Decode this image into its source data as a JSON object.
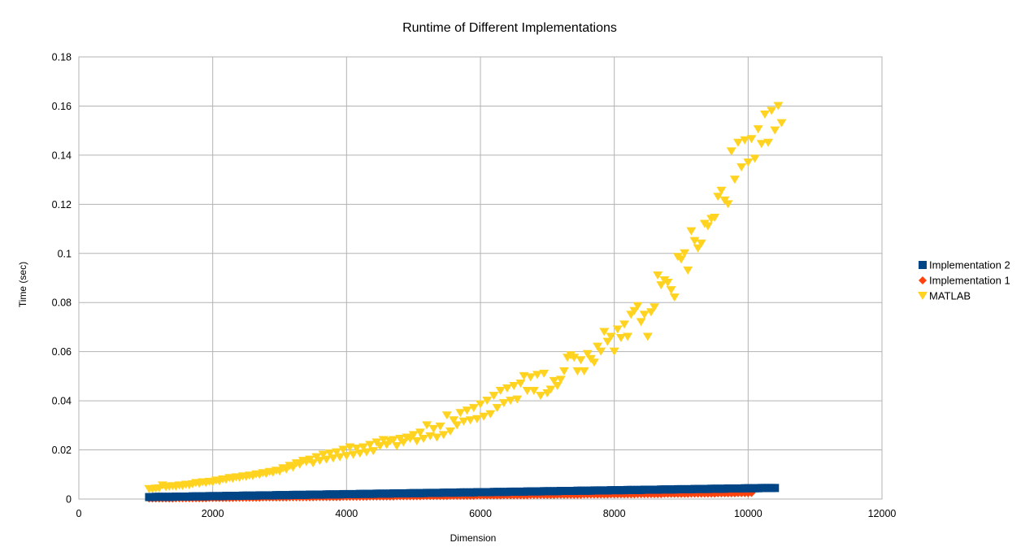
{
  "chart_data": {
    "type": "scatter",
    "title": "Runtime of Different Implementations",
    "xlabel": "Dimension",
    "ylabel": "Time (sec)",
    "xlim": [
      0,
      12000
    ],
    "ylim": [
      0,
      0.18
    ],
    "x_ticks": [
      0,
      2000,
      4000,
      6000,
      8000,
      10000,
      12000
    ],
    "y_ticks": [
      0,
      0.02,
      0.04,
      0.06,
      0.08,
      0.1,
      0.12,
      0.14,
      0.16,
      0.18
    ],
    "grid": true,
    "legend_position": "right",
    "x_start": 1050,
    "x_step": 50,
    "series": [
      {
        "name": "Implementation 2",
        "marker": "square",
        "color": "#004586",
        "values": [
          0.0008,
          0.0008,
          0.0009,
          0.0009,
          0.0009,
          0.0009,
          0.0009,
          0.0009,
          0.001,
          0.001,
          0.001,
          0.001,
          0.001,
          0.0011,
          0.0011,
          0.0011,
          0.0011,
          0.0011,
          0.0012,
          0.0012,
          0.0012,
          0.0012,
          0.0012,
          0.0013,
          0.0013,
          0.0013,
          0.0013,
          0.0013,
          0.0014,
          0.0014,
          0.0014,
          0.0014,
          0.0014,
          0.0015,
          0.0015,
          0.0015,
          0.0015,
          0.0015,
          0.0016,
          0.0016,
          0.0016,
          0.0016,
          0.0016,
          0.0017,
          0.0017,
          0.0017,
          0.0017,
          0.0017,
          0.0018,
          0.0018,
          0.0018,
          0.0018,
          0.0018,
          0.0019,
          0.0019,
          0.0019,
          0.0019,
          0.0019,
          0.002,
          0.002,
          0.002,
          0.002,
          0.002,
          0.0021,
          0.0021,
          0.0021,
          0.0021,
          0.0021,
          0.0022,
          0.0022,
          0.0022,
          0.0022,
          0.0022,
          0.0023,
          0.0023,
          0.0023,
          0.0023,
          0.0023,
          0.0024,
          0.0024,
          0.0024,
          0.0024,
          0.0024,
          0.0025,
          0.0025,
          0.0025,
          0.0025,
          0.0025,
          0.0026,
          0.0026,
          0.0026,
          0.0026,
          0.0026,
          0.0027,
          0.0027,
          0.0027,
          0.0027,
          0.0027,
          0.0028,
          0.0028,
          0.0028,
          0.0028,
          0.0028,
          0.0029,
          0.0029,
          0.0029,
          0.0029,
          0.0029,
          0.003,
          0.003,
          0.003,
          0.003,
          0.003,
          0.0031,
          0.0031,
          0.0031,
          0.0031,
          0.0031,
          0.0032,
          0.0032,
          0.0032,
          0.0032,
          0.0032,
          0.0033,
          0.0033,
          0.0033,
          0.0033,
          0.0033,
          0.0034,
          0.0034,
          0.0034,
          0.0034,
          0.0034,
          0.0035,
          0.0035,
          0.0035,
          0.0035,
          0.0035,
          0.0036,
          0.0036,
          0.0036,
          0.0036,
          0.0036,
          0.0037,
          0.0037,
          0.0037,
          0.0037,
          0.0037,
          0.0038,
          0.0038,
          0.0038,
          0.0038,
          0.0038,
          0.0039,
          0.0039,
          0.0039,
          0.0039,
          0.0039,
          0.004,
          0.004,
          0.004,
          0.004,
          0.004,
          0.0041,
          0.0041,
          0.0041,
          0.0041,
          0.0041,
          0.0042,
          0.0042,
          0.0042,
          0.0042,
          0.0042,
          0.0043,
          0.0043,
          0.0043,
          0.0043,
          0.0043,
          0.0044,
          0.0044,
          0.0044,
          0.0044,
          0.0044,
          0.0045,
          0.0045,
          0.0045,
          0.0045,
          0.0045
        ]
      },
      {
        "name": "Implementation 1",
        "marker": "diamond",
        "color": "#ff420e",
        "values": [
          0.0002,
          0.0002,
          0.0002,
          0.0002,
          0.0002,
          0.0002,
          0.0002,
          0.0002,
          0.0003,
          0.0003,
          0.0003,
          0.0003,
          0.0003,
          0.0003,
          0.0003,
          0.0003,
          0.0003,
          0.0003,
          0.0004,
          0.0004,
          0.0004,
          0.0004,
          0.0004,
          0.0004,
          0.0004,
          0.0004,
          0.0005,
          0.0005,
          0.0005,
          0.0005,
          0.0005,
          0.0005,
          0.0005,
          0.0005,
          0.0006,
          0.0006,
          0.0006,
          0.0006,
          0.0006,
          0.0006,
          0.0006,
          0.0006,
          0.0007,
          0.0007,
          0.0007,
          0.0007,
          0.0007,
          0.0007,
          0.0007,
          0.0007,
          0.0008,
          0.0008,
          0.0008,
          0.0008,
          0.0008,
          0.0008,
          0.0008,
          0.0008,
          0.0009,
          0.0009,
          0.0009,
          0.0009,
          0.0009,
          0.0009,
          0.0009,
          0.0009,
          0.001,
          0.001,
          0.001,
          0.001,
          0.001,
          0.001,
          0.001,
          0.001,
          0.0011,
          0.0011,
          0.0011,
          0.0011,
          0.0011,
          0.0011,
          0.0011,
          0.0011,
          0.0012,
          0.0012,
          0.0012,
          0.0012,
          0.0012,
          0.0012,
          0.0012,
          0.0012,
          0.0013,
          0.0013,
          0.0013,
          0.0013,
          0.0013,
          0.0013,
          0.0013,
          0.0013,
          0.0014,
          0.0014,
          0.0014,
          0.0014,
          0.0014,
          0.0014,
          0.0014,
          0.0014,
          0.0015,
          0.0015,
          0.0015,
          0.0015,
          0.0015,
          0.0015,
          0.0015,
          0.0015,
          0.0016,
          0.0016,
          0.0016,
          0.0016,
          0.0016,
          0.0016,
          0.0016,
          0.0016,
          0.0017,
          0.0017,
          0.0017,
          0.0017,
          0.0017,
          0.0017,
          0.0017,
          0.0017,
          0.0018,
          0.0018,
          0.0018,
          0.0018,
          0.0018,
          0.0018,
          0.0018,
          0.0018,
          0.0019,
          0.0019,
          0.0019,
          0.0019,
          0.0019,
          0.0019,
          0.0019,
          0.0019,
          0.002,
          0.002,
          0.002,
          0.002,
          0.002,
          0.002,
          0.002,
          0.002,
          0.0021,
          0.0021,
          0.0021,
          0.0021,
          0.0021,
          0.0021,
          0.0021,
          0.0021,
          0.0022,
          0.0022,
          0.0022,
          0.0022,
          0.0022,
          0.0022,
          0.0022,
          0.0022,
          0.0023,
          0.0023,
          0.0023,
          0.0023,
          0.0023,
          0.0023,
          0.0024,
          0.0024,
          0.0024,
          0.0024,
          0.0025
        ]
      },
      {
        "name": "MATLAB",
        "marker": "triangle-down",
        "color": "#ffd320",
        "values": [
          0.004,
          0.004,
          0.0042,
          0.0043,
          0.0055,
          0.0048,
          0.005,
          0.0052,
          0.005,
          0.0055,
          0.0053,
          0.0058,
          0.0056,
          0.006,
          0.0065,
          0.0062,
          0.0068,
          0.0065,
          0.007,
          0.0068,
          0.0075,
          0.0072,
          0.008,
          0.0078,
          0.0085,
          0.0082,
          0.0088,
          0.0086,
          0.0092,
          0.009,
          0.0095,
          0.0093,
          0.01,
          0.0098,
          0.0105,
          0.0102,
          0.011,
          0.0107,
          0.0115,
          0.0112,
          0.0125,
          0.012,
          0.0135,
          0.0128,
          0.0145,
          0.014,
          0.0155,
          0.015,
          0.016,
          0.0145,
          0.017,
          0.0155,
          0.018,
          0.016,
          0.0185,
          0.0165,
          0.019,
          0.017,
          0.02,
          0.0175,
          0.021,
          0.018,
          0.0205,
          0.0185,
          0.021,
          0.019,
          0.022,
          0.0195,
          0.023,
          0.0215,
          0.024,
          0.022,
          0.0235,
          0.024,
          0.0215,
          0.0245,
          0.023,
          0.025,
          0.0245,
          0.026,
          0.0235,
          0.027,
          0.0245,
          0.03,
          0.0255,
          0.0285,
          0.025,
          0.0295,
          0.026,
          0.034,
          0.0275,
          0.032,
          0.03,
          0.035,
          0.0315,
          0.036,
          0.032,
          0.037,
          0.0325,
          0.0385,
          0.0335,
          0.04,
          0.0345,
          0.042,
          0.037,
          0.044,
          0.039,
          0.045,
          0.04,
          0.046,
          0.0405,
          0.047,
          0.05,
          0.044,
          0.0495,
          0.044,
          0.0505,
          0.042,
          0.051,
          0.043,
          0.0445,
          0.048,
          0.046,
          0.0485,
          0.052,
          0.0575,
          0.0585,
          0.0575,
          0.052,
          0.0565,
          0.052,
          0.059,
          0.057,
          0.0555,
          0.062,
          0.06,
          0.068,
          0.064,
          0.066,
          0.06,
          0.069,
          0.0655,
          0.071,
          0.066,
          0.075,
          0.0765,
          0.0785,
          0.072,
          0.075,
          0.066,
          0.076,
          0.078,
          0.091,
          0.087,
          0.089,
          0.088,
          0.085,
          0.082,
          0.0985,
          0.0975,
          0.1,
          0.093,
          0.109,
          0.105,
          0.102,
          0.104,
          0.112,
          0.111,
          0.114,
          0.1145,
          0.123,
          0.1255,
          0.1215,
          0.12,
          0.1415,
          0.13,
          0.145,
          0.135,
          0.146,
          0.137,
          0.1465,
          0.1385,
          0.1505,
          0.1445,
          0.1565,
          0.145,
          0.158,
          0.15,
          0.16,
          0.153
        ]
      }
    ]
  }
}
